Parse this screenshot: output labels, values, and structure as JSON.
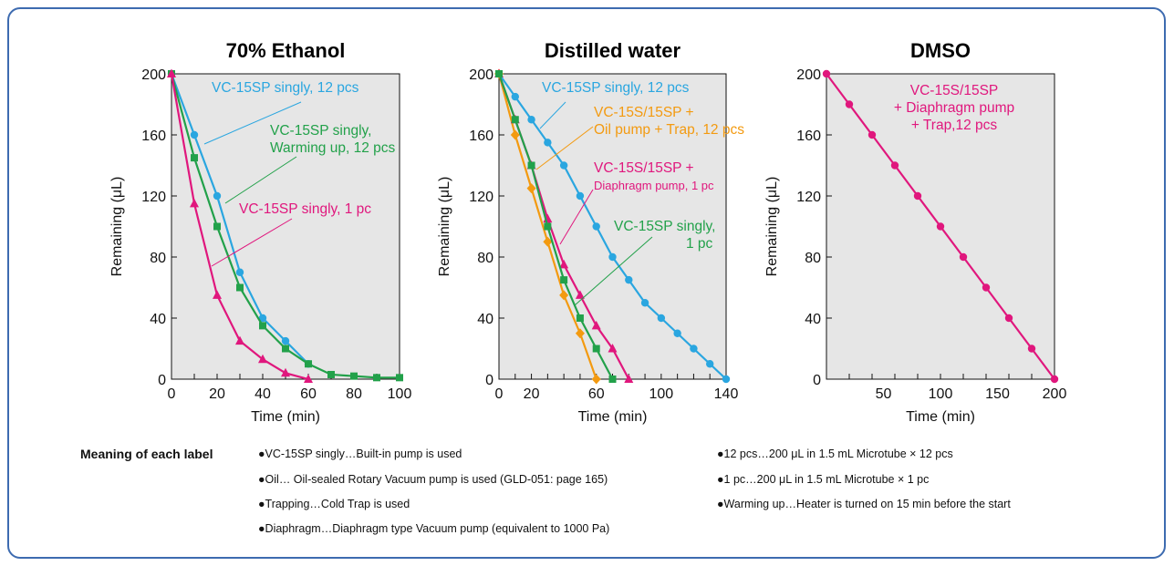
{
  "colors": {
    "blue": "#2aa6e0",
    "green": "#22a14a",
    "magenta": "#e0177d",
    "orange": "#f39a10",
    "border": "#3d6bb0",
    "plot_bg": "#e6e6e6"
  },
  "chart_data": [
    {
      "type": "line",
      "title": "70% Ethanol",
      "xlabel": "Time (min)",
      "ylabel": "Remaining (μL)",
      "xlim": [
        0,
        100
      ],
      "ylim": [
        0,
        200
      ],
      "xticks": [
        0,
        20,
        40,
        60,
        80,
        100
      ],
      "yticks": [
        0,
        40,
        80,
        120,
        160,
        200
      ],
      "series": [
        {
          "name": "VC-15SP singly, 12 pcs",
          "color": "blue",
          "marker": "circle",
          "x": [
            0,
            10,
            20,
            30,
            40,
            50,
            60
          ],
          "y": [
            200,
            160,
            120,
            70,
            40,
            25,
            10
          ]
        },
        {
          "name": "VC-15SP singly, Warming up, 12 pcs",
          "color": "green",
          "marker": "square",
          "x": [
            0,
            10,
            20,
            30,
            40,
            50,
            60,
            70,
            80,
            90,
            100
          ],
          "y": [
            200,
            145,
            100,
            60,
            35,
            20,
            10,
            3,
            2,
            1,
            1
          ]
        },
        {
          "name": "VC-15SP singly, 1 pc",
          "color": "magenta",
          "marker": "triangle",
          "x": [
            0,
            10,
            20,
            30,
            40,
            50,
            60
          ],
          "y": [
            200,
            115,
            55,
            25,
            13,
            4,
            0
          ]
        }
      ],
      "annotations": [
        {
          "lines": [
            "VC-15SP singly, 12 pcs"
          ],
          "color": "blue",
          "series": 0
        },
        {
          "lines": [
            "VC-15SP singly,",
            "Warming up, 12 pcs"
          ],
          "color": "green",
          "series": 1
        },
        {
          "lines": [
            "VC-15SP singly, 1 pc"
          ],
          "color": "magenta",
          "series": 2
        }
      ]
    },
    {
      "type": "line",
      "title": "Distilled water",
      "xlabel": "Time (min)",
      "ylabel": "Remaining (μL)",
      "xlim": [
        0,
        140
      ],
      "ylim": [
        0,
        200
      ],
      "xticks": [
        0,
        20,
        60,
        100,
        140
      ],
      "xtick_labels": [
        "0",
        "20",
        "60",
        "100",
        "140"
      ],
      "yticks": [
        0,
        40,
        80,
        120,
        160,
        200
      ],
      "series": [
        {
          "name": "VC-15SP singly, 12 pcs",
          "color": "blue",
          "marker": "circle",
          "x": [
            0,
            10,
            20,
            30,
            40,
            50,
            60,
            70,
            80,
            90,
            100,
            110,
            120,
            130,
            140
          ],
          "y": [
            200,
            185,
            170,
            155,
            140,
            120,
            100,
            80,
            65,
            50,
            40,
            30,
            20,
            10,
            0
          ]
        },
        {
          "name": "VC-15S/15SP + Oil pump + Trap, 12 pcs",
          "color": "orange",
          "marker": "diamond",
          "x": [
            0,
            10,
            20,
            30,
            40,
            50,
            60
          ],
          "y": [
            200,
            160,
            125,
            90,
            55,
            30,
            0
          ]
        },
        {
          "name": "VC-15S/15SP + Diaphragm pump, 1 pc",
          "color": "magenta",
          "marker": "triangle",
          "x": [
            0,
            10,
            20,
            30,
            40,
            50,
            60,
            70,
            80
          ],
          "y": [
            200,
            170,
            140,
            105,
            75,
            55,
            35,
            20,
            0
          ]
        },
        {
          "name": "VC-15SP singly, 1 pc",
          "color": "green",
          "marker": "square",
          "x": [
            0,
            10,
            20,
            30,
            40,
            50,
            60,
            70
          ],
          "y": [
            200,
            170,
            140,
            100,
            65,
            40,
            20,
            0
          ]
        }
      ],
      "annotations": [
        {
          "lines": [
            "VC-15SP singly, 12 pcs"
          ],
          "color": "blue",
          "series": 0
        },
        {
          "lines": [
            "VC-15S/15SP +",
            "Oil pump + Trap, 12 pcs"
          ],
          "color": "orange",
          "series": 1
        },
        {
          "lines": [
            "VC-15S/15SP +",
            "Diaphragm pump, 1 pc"
          ],
          "color": "magenta",
          "series": 2
        },
        {
          "lines": [
            "VC-15SP singly,",
            "1 pc"
          ],
          "color": "green",
          "series": 3
        }
      ]
    },
    {
      "type": "line",
      "title": "DMSO",
      "xlabel": "Time (min)",
      "ylabel": "Remaining (μL)",
      "xlim": [
        0,
        200
      ],
      "ylim": [
        0,
        200
      ],
      "xticks": [
        50,
        100,
        150,
        200
      ],
      "yticks": [
        0,
        40,
        80,
        120,
        160,
        200
      ],
      "series": [
        {
          "name": "VC-15S/15SP + Diaphragm pump + Trap,12 pcs",
          "color": "magenta",
          "marker": "circle",
          "x": [
            0,
            20,
            40,
            60,
            80,
            100,
            120,
            140,
            160,
            180,
            200
          ],
          "y": [
            200,
            180,
            160,
            140,
            120,
            100,
            80,
            60,
            40,
            20,
            0
          ]
        }
      ],
      "annotations": [
        {
          "lines": [
            "VC-15S/15SP",
            "+ Diaphragm pump",
            "+ Trap,12 pcs"
          ],
          "color": "magenta",
          "series": 0
        }
      ]
    }
  ],
  "legend": {
    "title": "Meaning of each label",
    "left_items": [
      "●VC-15SP singly…Built-in pump is used",
      "●Oil… Oil-sealed Rotary Vacuum pump is used (GLD-051: page 165)",
      "●Trapping…Cold Trap is used",
      "●Diaphragm…Diaphragm type Vacuum pump (equivalent to 1000 Pa)"
    ],
    "right_items": [
      "●12 pcs…200 μL in 1.5 mL Microtube × 12 pcs",
      "●1 pc…200 μL in 1.5 mL Microtube × 1 pc",
      "●Warming up…Heater is turned on 15 min before the start"
    ]
  }
}
